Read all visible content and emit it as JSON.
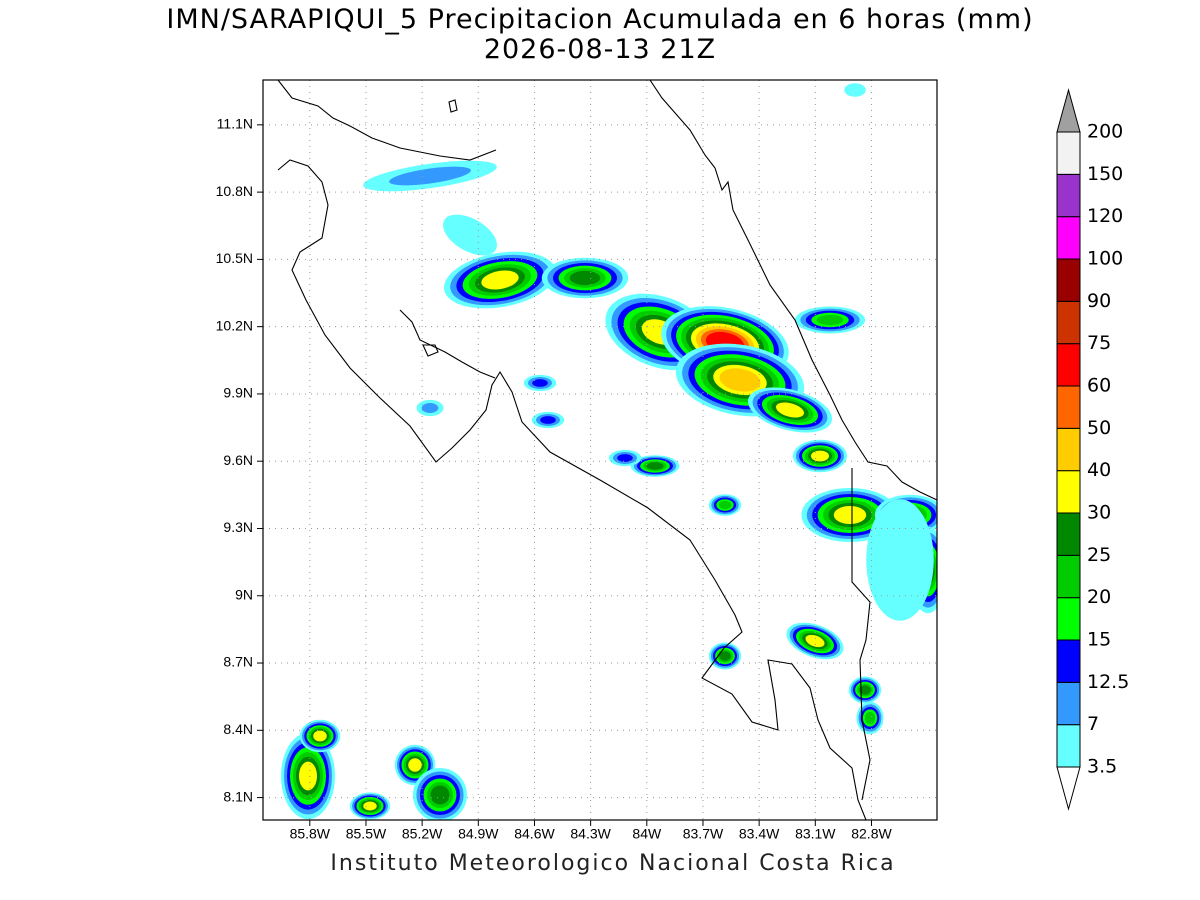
{
  "header": {
    "title": "IMN/SARAPIQUI_5 Precipitacion Acumulada en 6 horas (mm)",
    "subtitle": "2026-08-13 21Z"
  },
  "map": {
    "xlim": [
      -86.05,
      -82.45
    ],
    "ylim": [
      8.0,
      11.3
    ],
    "grid": true,
    "xticks": [
      {
        "value": -85.8,
        "label": "85.8W"
      },
      {
        "value": -85.5,
        "label": "85.5W"
      },
      {
        "value": -85.2,
        "label": "85.2W"
      },
      {
        "value": -84.9,
        "label": "84.9W"
      },
      {
        "value": -84.6,
        "label": "84.6W"
      },
      {
        "value": -84.3,
        "label": "84.3W"
      },
      {
        "value": -84,
        "label": "84W"
      },
      {
        "value": -83.7,
        "label": "83.7W"
      },
      {
        "value": -83.4,
        "label": "83.4W"
      },
      {
        "value": -83.1,
        "label": "83.1W"
      },
      {
        "value": -82.8,
        "label": "82.8W"
      }
    ],
    "yticks": [
      {
        "value": 8.1,
        "label": "8.1N"
      },
      {
        "value": 8.4,
        "label": "8.4N"
      },
      {
        "value": 8.7,
        "label": "8.7N"
      },
      {
        "value": 9,
        "label": "9N"
      },
      {
        "value": 9.3,
        "label": "9.3N"
      },
      {
        "value": 9.6,
        "label": "9.6N"
      },
      {
        "value": 9.9,
        "label": "9.9N"
      },
      {
        "value": 10.2,
        "label": "10.2N"
      },
      {
        "value": 10.5,
        "label": "10.5N"
      },
      {
        "value": 10.8,
        "label": "10.8N"
      },
      {
        "value": 11.1,
        "label": "11.1N"
      }
    ]
  },
  "colorbar": {
    "levels": [
      3.5,
      7,
      12.5,
      15,
      20,
      25,
      30,
      40,
      50,
      60,
      75,
      90,
      100,
      120,
      150,
      200
    ],
    "colors": [
      "#66ffff",
      "#3399ff",
      "#0000ff",
      "#00ff00",
      "#00cc00",
      "#008800",
      "#ffff00",
      "#ffcc00",
      "#ff6600",
      "#ff0000",
      "#cc3300",
      "#990000",
      "#ff00ff",
      "#9933cc",
      "#f2f2f2"
    ],
    "under_color": "#ffffff",
    "over_color": "#a0a0a0"
  },
  "footer": "Instituto Meteorologico Nacional Costa Rica"
}
